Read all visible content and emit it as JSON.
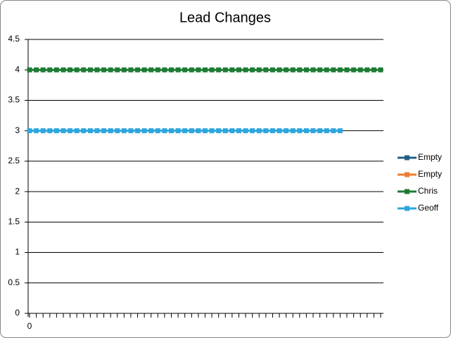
{
  "chart_data": {
    "type": "line",
    "title": "Lead Changes",
    "categories": [
      "0",
      null,
      null,
      null,
      null,
      null,
      null,
      null,
      null,
      null,
      null,
      null,
      null,
      null,
      null,
      null,
      null,
      null,
      null,
      null,
      null,
      null,
      null,
      null,
      null,
      null,
      null,
      null,
      null,
      null,
      null,
      null,
      null,
      null,
      null,
      null,
      null,
      null,
      null,
      null,
      null,
      null,
      null,
      null,
      null,
      null,
      null,
      null,
      null,
      null,
      null,
      null,
      null
    ],
    "series": [
      {
        "name": "Empty",
        "color": "#1f5f87",
        "values": [
          null,
          null,
          null,
          null,
          null,
          null,
          null,
          null,
          null,
          null,
          null,
          null,
          null,
          null,
          null,
          null,
          null,
          null,
          null,
          null,
          null,
          null,
          null,
          null,
          null,
          null,
          null,
          null,
          null,
          null,
          null,
          null,
          null,
          null,
          null,
          null,
          null,
          null,
          null,
          null,
          null,
          null,
          null,
          null,
          null,
          null,
          null,
          null,
          null,
          null,
          null,
          null,
          null
        ]
      },
      {
        "name": "Empty",
        "color": "#ed7d31",
        "values": [
          null,
          null,
          null,
          null,
          null,
          null,
          null,
          null,
          null,
          null,
          null,
          null,
          null,
          null,
          null,
          null,
          null,
          null,
          null,
          null,
          null,
          null,
          null,
          null,
          null,
          null,
          null,
          null,
          null,
          null,
          null,
          null,
          null,
          null,
          null,
          null,
          null,
          null,
          null,
          null,
          null,
          null,
          null,
          null,
          null,
          null,
          null,
          null,
          null,
          null,
          null,
          null,
          null
        ]
      },
      {
        "name": "Chris",
        "color": "#1e7b34",
        "values": [
          4,
          4,
          4,
          4,
          4,
          4,
          4,
          4,
          4,
          4,
          4,
          4,
          4,
          4,
          4,
          4,
          4,
          4,
          4,
          4,
          4,
          4,
          4,
          4,
          4,
          4,
          4,
          4,
          4,
          4,
          4,
          4,
          4,
          4,
          4,
          4,
          4,
          4,
          4,
          4,
          4,
          4,
          4,
          4,
          4,
          4,
          4,
          4,
          4,
          4,
          4,
          4,
          4
        ]
      },
      {
        "name": "Geoff",
        "color": "#2ea6dd",
        "values": [
          3,
          3,
          3,
          3,
          3,
          3,
          3,
          3,
          3,
          3,
          3,
          3,
          3,
          3,
          3,
          3,
          3,
          3,
          3,
          3,
          3,
          3,
          3,
          3,
          3,
          3,
          3,
          3,
          3,
          3,
          3,
          3,
          3,
          3,
          3,
          3,
          3,
          3,
          3,
          3,
          3,
          3,
          3,
          3,
          3,
          3,
          3,
          null,
          null,
          null,
          null,
          null,
          null
        ]
      }
    ],
    "ylim": [
      0,
      4.5
    ],
    "yticks": [
      0,
      0.5,
      1,
      1.5,
      2,
      2.5,
      3,
      3.5,
      4,
      4.5
    ],
    "grid": true,
    "legend": "right"
  }
}
